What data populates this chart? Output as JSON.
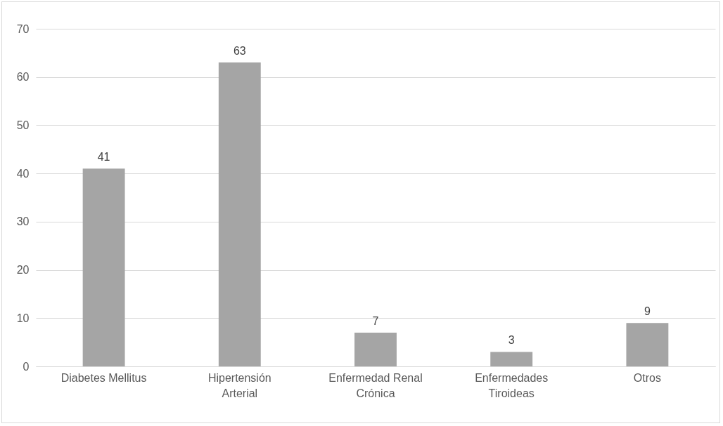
{
  "chart_data": {
    "type": "bar",
    "categories": [
      "Diabetes Mellitus",
      "Hipertensión Arterial",
      "Enfermedad Renal Crónica",
      "Enfermedades Tiroideas",
      "Otros"
    ],
    "values": [
      41,
      63,
      7,
      3,
      9
    ],
    "color": "#a5a5a5",
    "ylim": [
      0,
      70
    ],
    "yticks": [
      0,
      10,
      20,
      30,
      40,
      50,
      60,
      70
    ],
    "grid": "y",
    "data_labels": true
  }
}
